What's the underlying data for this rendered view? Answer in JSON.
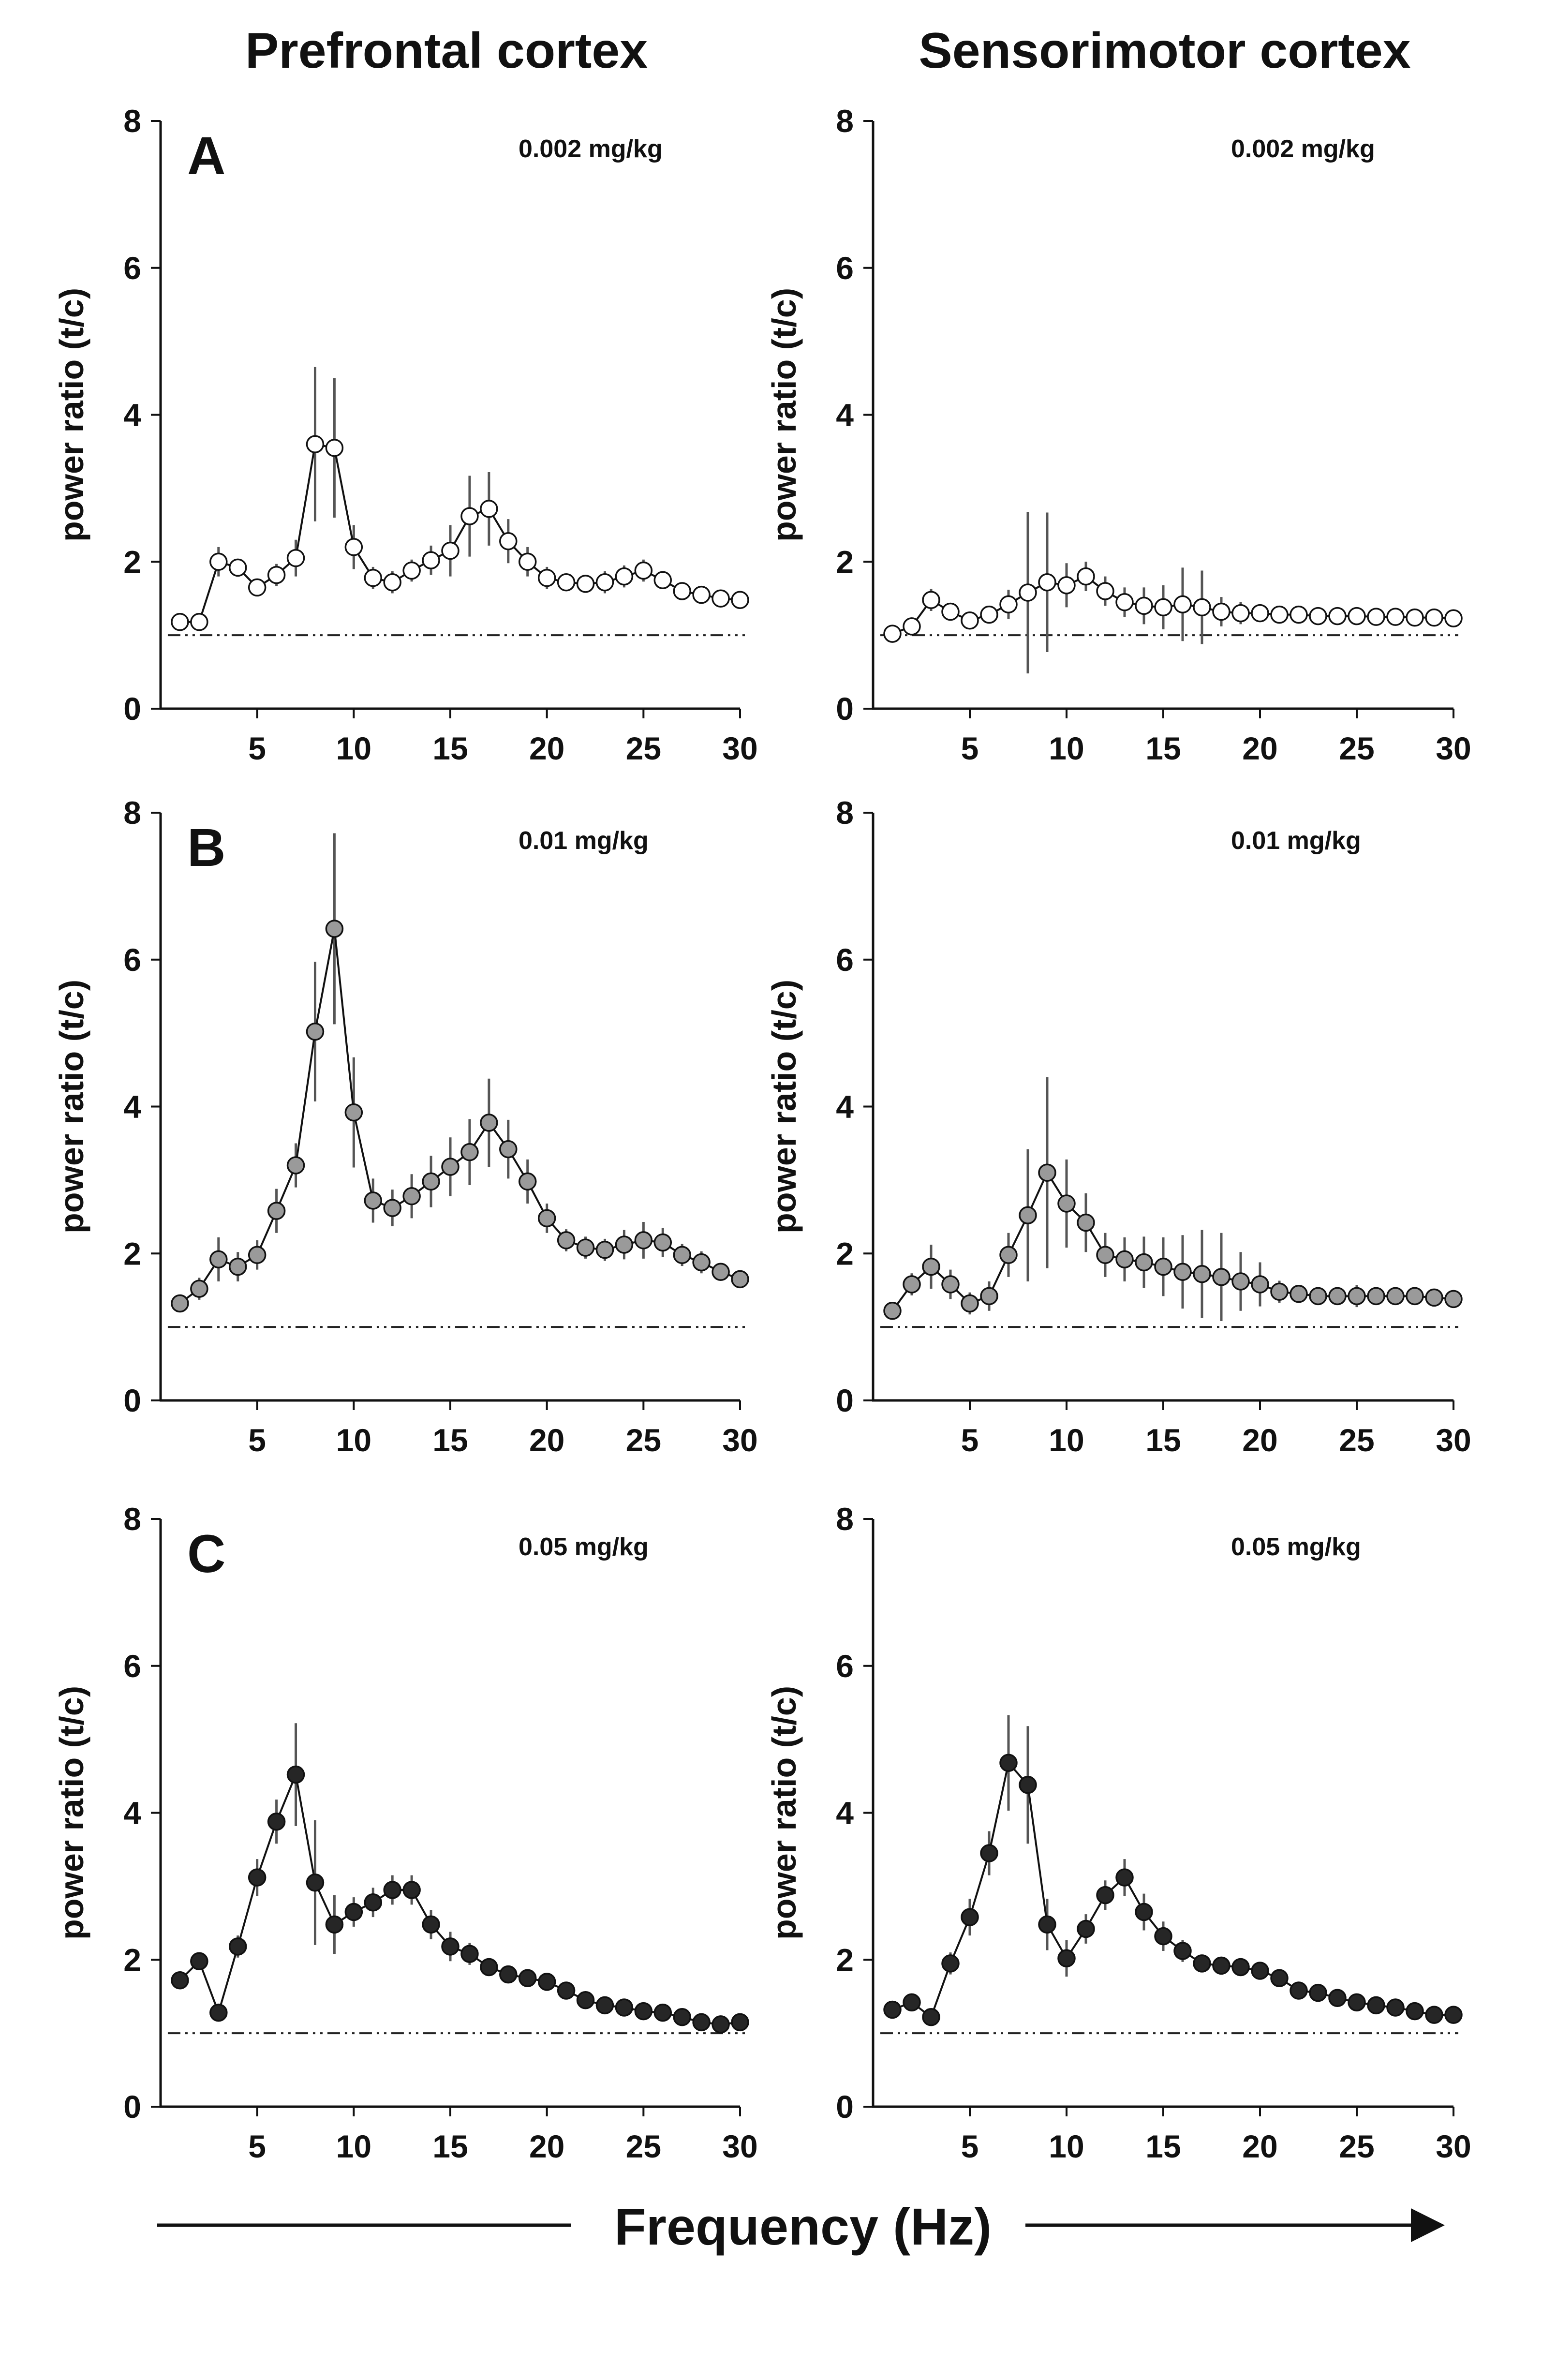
{
  "figure": {
    "column_titles": [
      "Prefrontal cortex",
      "Sensorimotor cortex"
    ],
    "footer": {
      "label": "Frequency (Hz)"
    }
  },
  "chart_data": [
    {
      "type": "line",
      "panel": "A",
      "column": "Prefrontal cortex",
      "annotation": "0.002 mg/kg",
      "ylabel": "power ratio (t/c)",
      "xlabel": "",
      "xlim": [
        0,
        30
      ],
      "ylim": [
        0,
        8
      ],
      "xticks": [
        5,
        10,
        15,
        20,
        25,
        30
      ],
      "yticks": [
        0,
        2,
        4,
        6,
        8
      ],
      "xticklabels": [
        "5",
        "10",
        "15",
        "20",
        "25",
        "30"
      ],
      "yticklabels": [
        "0",
        "2",
        "4",
        "6",
        "8"
      ],
      "baseline": 1,
      "marker_fill": "#ffffff",
      "series": [
        {
          "x": [
            1,
            2,
            3,
            4,
            5,
            6,
            7,
            8,
            9,
            10,
            11,
            12,
            13,
            14,
            15,
            16,
            17,
            18,
            19,
            20,
            21,
            22,
            23,
            24,
            25,
            26,
            27,
            28,
            29,
            30
          ],
          "values": [
            1.18,
            1.18,
            2.0,
            1.92,
            1.65,
            1.82,
            2.05,
            3.6,
            3.55,
            2.2,
            1.78,
            1.72,
            1.88,
            2.02,
            2.15,
            2.62,
            2.72,
            2.28,
            2.0,
            1.78,
            1.72,
            1.7,
            1.72,
            1.8,
            1.88,
            1.75,
            1.6,
            1.55,
            1.5,
            1.48
          ],
          "errors": [
            0.05,
            0.05,
            0.2,
            0.1,
            0.1,
            0.15,
            0.25,
            1.05,
            0.95,
            0.3,
            0.15,
            0.15,
            0.15,
            0.2,
            0.35,
            0.55,
            0.5,
            0.3,
            0.2,
            0.15,
            0.1,
            0.1,
            0.15,
            0.15,
            0.15,
            0.12,
            0.08,
            0.06,
            0.05,
            0.05
          ]
        }
      ]
    },
    {
      "type": "line",
      "panel": "",
      "column": "Sensorimotor cortex",
      "annotation": "0.002 mg/kg",
      "ylabel": "power ratio (t/c)",
      "xlabel": "",
      "xlim": [
        0,
        30
      ],
      "ylim": [
        0,
        8
      ],
      "xticks": [
        5,
        10,
        15,
        20,
        25,
        30
      ],
      "yticks": [
        0,
        2,
        4,
        6,
        8
      ],
      "xticklabels": [
        "5",
        "10",
        "15",
        "20",
        "25",
        "30"
      ],
      "yticklabels": [
        "0",
        "2",
        "4",
        "6",
        "8"
      ],
      "baseline": 1,
      "marker_fill": "#ffffff",
      "series": [
        {
          "x": [
            1,
            2,
            3,
            4,
            5,
            6,
            7,
            8,
            9,
            10,
            11,
            12,
            13,
            14,
            15,
            16,
            17,
            18,
            19,
            20,
            21,
            22,
            23,
            24,
            25,
            26,
            27,
            28,
            29,
            30
          ],
          "values": [
            1.02,
            1.12,
            1.48,
            1.32,
            1.2,
            1.28,
            1.42,
            1.58,
            1.72,
            1.68,
            1.8,
            1.6,
            1.45,
            1.4,
            1.38,
            1.42,
            1.38,
            1.32,
            1.3,
            1.3,
            1.28,
            1.28,
            1.26,
            1.26,
            1.26,
            1.25,
            1.25,
            1.24,
            1.24,
            1.23
          ],
          "errors": [
            0.05,
            0.08,
            0.15,
            0.12,
            0.1,
            0.12,
            0.2,
            1.1,
            0.95,
            0.3,
            0.2,
            0.2,
            0.2,
            0.25,
            0.3,
            0.5,
            0.5,
            0.2,
            0.15,
            0.12,
            0.1,
            0.1,
            0.1,
            0.1,
            0.1,
            0.1,
            0.08,
            0.08,
            0.08,
            0.08
          ]
        }
      ]
    },
    {
      "type": "line",
      "panel": "B",
      "column": "Prefrontal cortex",
      "annotation": "0.01 mg/kg",
      "ylabel": "power ratio (t/c)",
      "xlabel": "",
      "xlim": [
        0,
        30
      ],
      "ylim": [
        0,
        8
      ],
      "xticks": [
        5,
        10,
        15,
        20,
        25,
        30
      ],
      "yticks": [
        0,
        2,
        4,
        6,
        8
      ],
      "xticklabels": [
        "5",
        "10",
        "15",
        "20",
        "25",
        "30"
      ],
      "yticklabels": [
        "0",
        "2",
        "4",
        "6",
        "8"
      ],
      "baseline": 1,
      "marker_fill": "#9a9a9a",
      "series": [
        {
          "x": [
            1,
            2,
            3,
            4,
            5,
            6,
            7,
            8,
            9,
            10,
            11,
            12,
            13,
            14,
            15,
            16,
            17,
            18,
            19,
            20,
            21,
            22,
            23,
            24,
            25,
            26,
            27,
            28,
            29,
            30
          ],
          "values": [
            1.32,
            1.52,
            1.92,
            1.82,
            1.98,
            2.58,
            3.2,
            5.02,
            6.42,
            3.92,
            2.72,
            2.62,
            2.78,
            2.98,
            3.18,
            3.38,
            3.78,
            3.42,
            2.98,
            2.48,
            2.18,
            2.08,
            2.05,
            2.12,
            2.18,
            2.15,
            1.98,
            1.88,
            1.75,
            1.65
          ],
          "errors": [
            0.1,
            0.15,
            0.3,
            0.2,
            0.2,
            0.3,
            0.3,
            0.95,
            1.3,
            0.75,
            0.3,
            0.25,
            0.3,
            0.35,
            0.4,
            0.45,
            0.6,
            0.4,
            0.3,
            0.2,
            0.15,
            0.15,
            0.15,
            0.2,
            0.25,
            0.2,
            0.15,
            0.15,
            0.1,
            0.1
          ]
        }
      ]
    },
    {
      "type": "line",
      "panel": "",
      "column": "Sensorimotor cortex",
      "annotation": "0.01 mg/kg",
      "ylabel": "power ratio (t/c)",
      "xlabel": "",
      "xlim": [
        0,
        30
      ],
      "ylim": [
        0,
        8
      ],
      "xticks": [
        5,
        10,
        15,
        20,
        25,
        30
      ],
      "yticks": [
        0,
        2,
        4,
        6,
        8
      ],
      "xticklabels": [
        "5",
        "10",
        "15",
        "20",
        "25",
        "30"
      ],
      "yticklabels": [
        "0",
        "2",
        "4",
        "6",
        "8"
      ],
      "baseline": 1,
      "marker_fill": "#9a9a9a",
      "series": [
        {
          "x": [
            1,
            2,
            3,
            4,
            5,
            6,
            7,
            8,
            9,
            10,
            11,
            12,
            13,
            14,
            15,
            16,
            17,
            18,
            19,
            20,
            21,
            22,
            23,
            24,
            25,
            26,
            27,
            28,
            29,
            30
          ],
          "values": [
            1.22,
            1.58,
            1.82,
            1.58,
            1.32,
            1.42,
            1.98,
            2.52,
            3.1,
            2.68,
            2.42,
            1.98,
            1.92,
            1.88,
            1.82,
            1.75,
            1.72,
            1.68,
            1.62,
            1.58,
            1.48,
            1.45,
            1.42,
            1.42,
            1.42,
            1.42,
            1.42,
            1.42,
            1.4,
            1.38
          ],
          "errors": [
            0.1,
            0.15,
            0.3,
            0.2,
            0.15,
            0.2,
            0.3,
            0.9,
            1.3,
            0.6,
            0.4,
            0.3,
            0.3,
            0.35,
            0.4,
            0.5,
            0.6,
            0.6,
            0.4,
            0.3,
            0.15,
            0.12,
            0.12,
            0.12,
            0.15,
            0.12,
            0.12,
            0.1,
            0.1,
            0.1
          ]
        }
      ]
    },
    {
      "type": "line",
      "panel": "C",
      "column": "Prefrontal cortex",
      "annotation": "0.05 mg/kg",
      "ylabel": "power ratio (t/c)",
      "xlabel": "",
      "xlim": [
        0,
        30
      ],
      "ylim": [
        0,
        8
      ],
      "xticks": [
        5,
        10,
        15,
        20,
        25,
        30
      ],
      "yticks": [
        0,
        2,
        4,
        6,
        8
      ],
      "xticklabels": [
        "5",
        "10",
        "15",
        "20",
        "25",
        "30"
      ],
      "yticklabels": [
        "0",
        "2",
        "4",
        "6",
        "8"
      ],
      "baseline": 1,
      "marker_fill": "#262626",
      "series": [
        {
          "x": [
            1,
            2,
            3,
            4,
            5,
            6,
            7,
            8,
            9,
            10,
            11,
            12,
            13,
            14,
            15,
            16,
            17,
            18,
            19,
            20,
            21,
            22,
            23,
            24,
            25,
            26,
            27,
            28,
            29,
            30
          ],
          "values": [
            1.72,
            1.98,
            1.28,
            2.18,
            3.12,
            3.88,
            4.52,
            3.05,
            2.48,
            2.65,
            2.78,
            2.95,
            2.95,
            2.48,
            2.18,
            2.08,
            1.9,
            1.8,
            1.75,
            1.7,
            1.58,
            1.45,
            1.38,
            1.35,
            1.3,
            1.28,
            1.22,
            1.15,
            1.12,
            1.15
          ],
          "errors": [
            0.1,
            0.12,
            0.1,
            0.15,
            0.25,
            0.3,
            0.7,
            0.85,
            0.4,
            0.2,
            0.2,
            0.2,
            0.2,
            0.2,
            0.2,
            0.15,
            0.1,
            0.1,
            0.08,
            0.08,
            0.08,
            0.06,
            0.06,
            0.06,
            0.06,
            0.05,
            0.05,
            0.05,
            0.05,
            0.05
          ]
        }
      ]
    },
    {
      "type": "line",
      "panel": "",
      "column": "Sensorimotor cortex",
      "annotation": "0.05 mg/kg",
      "ylabel": "power ratio (t/c)",
      "xlabel": "",
      "xlim": [
        0,
        30
      ],
      "ylim": [
        0,
        8
      ],
      "xticks": [
        5,
        10,
        15,
        20,
        25,
        30
      ],
      "yticks": [
        0,
        2,
        4,
        6,
        8
      ],
      "xticklabels": [
        "5",
        "10",
        "15",
        "20",
        "25",
        "30"
      ],
      "yticklabels": [
        "0",
        "2",
        "4",
        "6",
        "8"
      ],
      "baseline": 1,
      "marker_fill": "#262626",
      "series": [
        {
          "x": [
            1,
            2,
            3,
            4,
            5,
            6,
            7,
            8,
            9,
            10,
            11,
            12,
            13,
            14,
            15,
            16,
            17,
            18,
            19,
            20,
            21,
            22,
            23,
            24,
            25,
            26,
            27,
            28,
            29,
            30
          ],
          "values": [
            1.32,
            1.42,
            1.22,
            1.95,
            2.58,
            3.45,
            4.68,
            4.38,
            2.48,
            2.02,
            2.42,
            2.88,
            3.12,
            2.65,
            2.32,
            2.12,
            1.95,
            1.92,
            1.9,
            1.85,
            1.75,
            1.58,
            1.55,
            1.48,
            1.42,
            1.38,
            1.35,
            1.3,
            1.25,
            1.25
          ],
          "errors": [
            0.1,
            0.1,
            0.1,
            0.15,
            0.25,
            0.3,
            0.65,
            0.8,
            0.35,
            0.25,
            0.2,
            0.2,
            0.25,
            0.25,
            0.2,
            0.15,
            0.1,
            0.1,
            0.08,
            0.08,
            0.08,
            0.06,
            0.06,
            0.06,
            0.06,
            0.05,
            0.05,
            0.05,
            0.05,
            0.05
          ]
        }
      ]
    }
  ]
}
